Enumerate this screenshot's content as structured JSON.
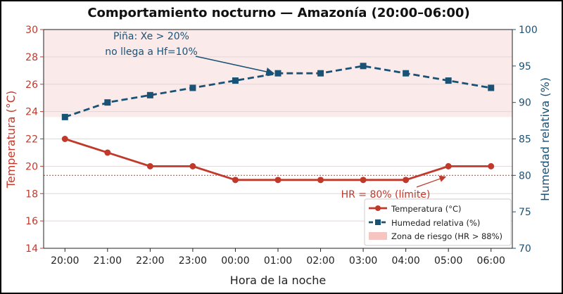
{
  "chart_data": {
    "type": "line",
    "title": "Comportamiento nocturno — Amazonía (20:00–06:00)",
    "xlabel": "Hora de la noche",
    "ylabel_left": "Temperatura (°C)",
    "ylabel_right": "Humedad relativa (%)",
    "categories": [
      "20:00",
      "21:00",
      "22:00",
      "23:00",
      "00:00",
      "01:00",
      "02:00",
      "03:00",
      "04:00",
      "05:00",
      "06:00"
    ],
    "ylim_left": [
      14,
      30
    ],
    "yticks_left": [
      14,
      16,
      18,
      20,
      22,
      24,
      26,
      28,
      30
    ],
    "ylim_right": [
      70,
      100
    ],
    "yticks_right": [
      70,
      75,
      80,
      85,
      90,
      95,
      100
    ],
    "grid": true,
    "legend_position": "lower-right",
    "series": [
      {
        "name": "Temperatura (°C)",
        "axis": "left",
        "color": "#c0392b",
        "marker": "circle",
        "style": "solid",
        "values": [
          22,
          21,
          20,
          20,
          19,
          19,
          19,
          19,
          19,
          20,
          20
        ]
      },
      {
        "name": "Humedad relativa (%)",
        "axis": "right",
        "color": "#1a5276",
        "marker": "square",
        "style": "dashed",
        "values": [
          88,
          90,
          91,
          92,
          93,
          94,
          94,
          95,
          94,
          93,
          92
        ]
      }
    ],
    "risk_zone": {
      "label": "Zona de riesgo (HR > 88%)",
      "threshold_right": 88,
      "color": "#f5b7b1"
    },
    "threshold_line": {
      "value_right": 80,
      "label": "HR = 80% (límite)",
      "color": "#e74c3c"
    },
    "annotations": [
      {
        "text_lines": [
          "Piña: Xe > 20%",
          "no llega a Hf=10%"
        ],
        "points_to": {
          "category": "01:00",
          "value_right": 94
        },
        "color": "#1a5276"
      },
      {
        "text_lines": [
          "HR = 80% (límite)"
        ],
        "points_to": {
          "category": "05:00",
          "value_right": 80
        },
        "color": "#c0392b"
      }
    ],
    "colors": {
      "left_axis": "#c0392b",
      "right_axis": "#1a5276"
    }
  }
}
